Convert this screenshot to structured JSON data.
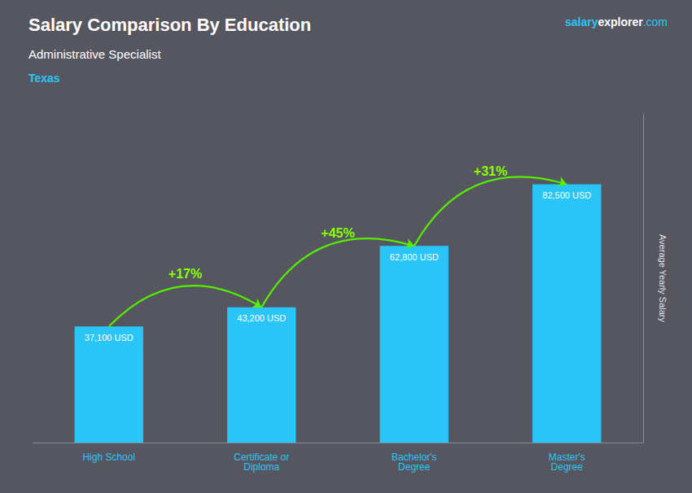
{
  "chart_data": {
    "type": "bar",
    "title": "Salary Comparison By Education",
    "subtitle": "Administrative Specialist",
    "location": "Texas",
    "watermark": [
      "salary",
      "explorer",
      ".com"
    ],
    "ylabel": "Average Yearly Salary",
    "categories": [
      "High School",
      "Certificate or\nDiploma",
      "Bachelor's\nDegree",
      "Master's\nDegree"
    ],
    "values": [
      37100,
      43200,
      62800,
      82500
    ],
    "value_labels": [
      "37,100 USD",
      "43,200 USD",
      "62,800 USD",
      "82,500 USD"
    ],
    "data_labels": true,
    "annotations": [
      "+17%",
      "+45%",
      "+31%"
    ],
    "color": "#29C5F6",
    "ylim": [
      0,
      105000
    ],
    "tick_labels": "x",
    "grid": false
  }
}
